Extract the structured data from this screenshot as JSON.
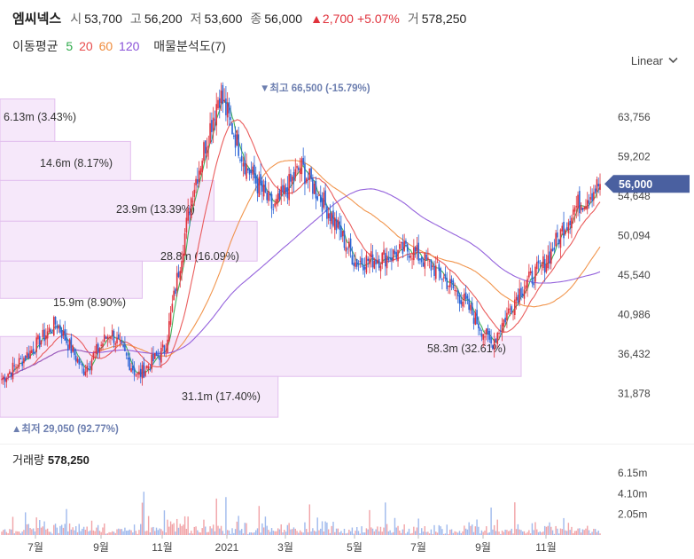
{
  "header": {
    "name": "엠씨넥스",
    "open_label": "시",
    "open": "53,700",
    "high_label": "고",
    "high": "56,200",
    "low_label": "저",
    "low": "53,600",
    "close_label": "종",
    "close": "56,000",
    "change": "▲2,700",
    "change_pct": "+5.07%",
    "volume_label": "거",
    "volume": "578,250"
  },
  "moving_average": {
    "label": "이동평균",
    "periods": [
      {
        "text": "5",
        "color": "#2eaa4a"
      },
      {
        "text": "20",
        "color": "#e84b4b"
      },
      {
        "text": "60",
        "color": "#f08a3a"
      },
      {
        "text": "120",
        "color": "#8a52d8"
      }
    ],
    "analysis_label": "매물분석도(7)"
  },
  "scale": {
    "label": "Linear",
    "icon": "chevron-down-icon"
  },
  "colors": {
    "up": "#e0323c",
    "down": "#2a64d6",
    "ma5": "#2eaa4a",
    "ma20": "#e84b4b",
    "ma60": "#f08a3a",
    "ma120": "#8a52d8",
    "profile_fill": "#f6e8fa",
    "profile_stroke": "#e2bfee",
    "price_tag": "#4a60a0"
  },
  "chart_data": {
    "type": "candlestick",
    "y_ticks": [
      "63,756",
      "59,202",
      "54,648",
      "50,094",
      "45,540",
      "40,986",
      "36,432",
      "31,878"
    ],
    "y_tick_values": [
      63756,
      59202,
      54648,
      50094,
      45540,
      40986,
      36432,
      31878
    ],
    "x_ticks": [
      "7월",
      "9월",
      "11월",
      "2021",
      "3월",
      "5월",
      "7월",
      "9월",
      "11월"
    ],
    "current_price_label": "56,000",
    "current_price": 56000,
    "high_annotation": "▼최고 66,500 (-15.79%)",
    "low_annotation": "▲최저 29,050 (92.77%)",
    "volume_profile": [
      {
        "label": "6.13m (3.43%)",
        "pct": 3.43,
        "price_low": 60900,
        "price_high": 65800
      },
      {
        "label": "14.6m (8.17%)",
        "pct": 8.17,
        "price_low": 56400,
        "price_high": 60900
      },
      {
        "label": "23.9m (13.39%)",
        "pct": 13.39,
        "price_low": 51700,
        "price_high": 56400
      },
      {
        "label": "28.8m (16.09%)",
        "pct": 16.09,
        "price_low": 47100,
        "price_high": 51700
      },
      {
        "label": "15.9m (8.90%)",
        "pct": 8.9,
        "price_low": 42800,
        "price_high": 47100
      },
      {
        "label": "58.3m (32.61%)",
        "pct": 32.61,
        "price_low": 33800,
        "price_high": 38400
      },
      {
        "label": "31.1m (17.40%)",
        "pct": 17.4,
        "price_low": 29100,
        "price_high": 33800
      }
    ],
    "key_closes": [
      {
        "x": "6월 초",
        "close": 33500
      },
      {
        "x": "7월",
        "close": 36500
      },
      {
        "x": "8월",
        "close": 40000
      },
      {
        "x": "9월",
        "close": 34500
      },
      {
        "x": "10월",
        "close": 39000
      },
      {
        "x": "11월",
        "close": 33800
      },
      {
        "x": "12월",
        "close": 37000
      },
      {
        "x": "2021 1월",
        "close": 55000
      },
      {
        "x": "2월 초",
        "close": 66500
      },
      {
        "x": "2월",
        "close": 58000
      },
      {
        "x": "3월",
        "close": 53000
      },
      {
        "x": "3월 말",
        "close": 58000
      },
      {
        "x": "4월",
        "close": 53000
      },
      {
        "x": "5월",
        "close": 47000
      },
      {
        "x": "6월",
        "close": 47500
      },
      {
        "x": "7월",
        "close": 48500
      },
      {
        "x": "8월",
        "close": 46000
      },
      {
        "x": "9월",
        "close": 42500
      },
      {
        "x": "10월",
        "close": 37500
      },
      {
        "x": "10월 말",
        "close": 43500
      },
      {
        "x": "11월",
        "close": 47000
      },
      {
        "x": "12월",
        "close": 53000
      },
      {
        "x": "12월 말",
        "close": 56000
      }
    ],
    "volume_title": "거래량",
    "volume_value": "578,250",
    "volume_ticks": [
      "6.15m",
      "4.10m",
      "2.05m"
    ],
    "volume_tick_values": [
      6150000,
      4100000,
      2050000
    ]
  }
}
